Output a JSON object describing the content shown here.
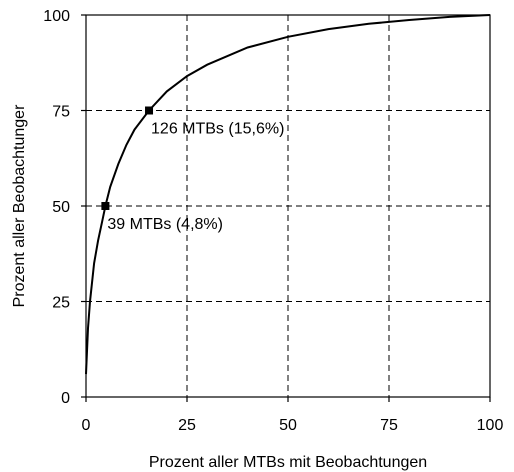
{
  "chart_data": {
    "type": "line",
    "title": "",
    "xlabel": "Prozent aller MTBs mit Beobachtungen",
    "ylabel": "Prozent aller Beobachtunger",
    "xlim": [
      0,
      100
    ],
    "ylim": [
      0,
      100
    ],
    "x_ticks": [
      0,
      25,
      50,
      75,
      100
    ],
    "y_ticks": [
      0,
      25,
      50,
      75,
      100
    ],
    "grid": "dashed",
    "series": [
      {
        "x": [
          0,
          0.5,
          1,
          2,
          3,
          4,
          4.8,
          6,
          8,
          10,
          12,
          15.6,
          20,
          25,
          30,
          40,
          50,
          60,
          70,
          80,
          90,
          100
        ],
        "y": [
          6,
          18,
          25,
          35,
          41,
          46,
          50,
          55,
          61,
          66,
          70,
          75,
          80,
          84,
          87,
          91.5,
          94.3,
          96.3,
          97.7,
          98.7,
          99.5,
          100
        ]
      }
    ],
    "markers": [
      {
        "x": 4.8,
        "y": 50,
        "label": "39 MTBs (4,8%)"
      },
      {
        "x": 15.6,
        "y": 75,
        "label": "126 MTBs (15,6%)"
      }
    ]
  },
  "colors": {
    "line": "#000000",
    "grid": "#000000",
    "background": "#ffffff"
  }
}
